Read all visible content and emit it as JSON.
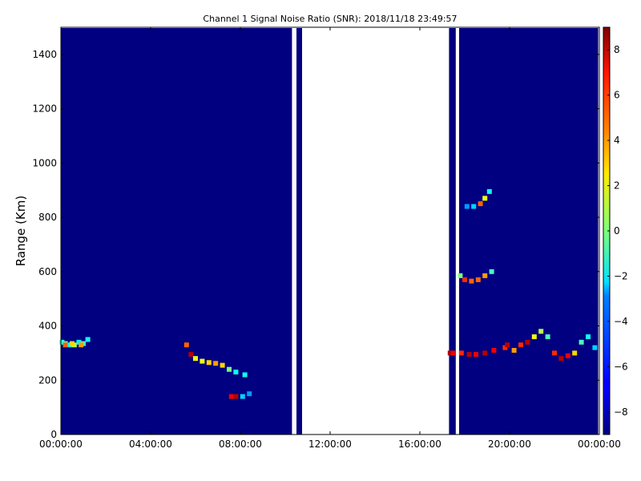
{
  "chart_data": {
    "type": "heatmap",
    "title": "Channel 1 Signal Noise Ratio (SNR): 2018/11/18 23:49:57",
    "xlabel": "",
    "ylabel": "Range (Km)",
    "x_tick_labels": [
      "00:00:00",
      "04:00:00",
      "08:00:00",
      "12:00:00",
      "16:00:00",
      "20:00:00",
      "00:00:00"
    ],
    "x_range_hours": [
      0,
      24
    ],
    "y_ticks": [
      0,
      200,
      400,
      600,
      800,
      1000,
      1200,
      1400
    ],
    "y_range": [
      0,
      1500
    ],
    "colorbar": {
      "ticks": [
        8,
        6,
        4,
        2,
        0,
        -2,
        -4,
        -6,
        -8
      ],
      "range": [
        -9,
        9
      ],
      "colormap": "jet"
    },
    "background_value": -9,
    "data_segments_hours": [
      [
        0,
        10.3
      ],
      [
        10.5,
        10.75
      ],
      [
        17.3,
        17.6
      ],
      [
        17.75,
        23.95
      ]
    ],
    "features": [
      {
        "name": "echo-0000",
        "points": [
          [
            0.05,
            340,
            -1.5
          ],
          [
            0.2,
            335,
            -1
          ],
          [
            0.4,
            330,
            -2
          ],
          [
            0.6,
            330,
            1
          ],
          [
            0.8,
            340,
            -2.5
          ],
          [
            1.0,
            335,
            -1
          ],
          [
            1.2,
            350,
            -2
          ]
        ]
      },
      {
        "name": "echo-0000-core",
        "points": [
          [
            0.2,
            330,
            5
          ],
          [
            0.5,
            335,
            3
          ],
          [
            0.9,
            330,
            4
          ]
        ]
      },
      {
        "name": "echo-0600",
        "points": [
          [
            5.6,
            330,
            5
          ],
          [
            5.8,
            295,
            8
          ],
          [
            6.0,
            280,
            2
          ],
          [
            6.3,
            270,
            2
          ],
          [
            6.6,
            265,
            3
          ],
          [
            6.9,
            262,
            4
          ],
          [
            7.2,
            255,
            3
          ],
          [
            7.5,
            240,
            0
          ],
          [
            7.8,
            230,
            -2
          ],
          [
            8.2,
            220,
            -2
          ]
        ]
      },
      {
        "name": "echo-0800",
        "points": [
          [
            7.6,
            140,
            7
          ],
          [
            7.8,
            140,
            8
          ],
          [
            8.1,
            140,
            -3
          ],
          [
            8.4,
            150,
            -4
          ]
        ]
      },
      {
        "name": "echo-1730",
        "points": [
          [
            17.35,
            300,
            8
          ],
          [
            17.5,
            300,
            7
          ],
          [
            17.85,
            300,
            6
          ],
          [
            18.2,
            295,
            8
          ],
          [
            18.5,
            295,
            7
          ],
          [
            18.9,
            300,
            8
          ],
          [
            19.3,
            310,
            7
          ],
          [
            19.8,
            320,
            6
          ]
        ]
      },
      {
        "name": "echo-arc-600",
        "points": [
          [
            17.8,
            585,
            0
          ],
          [
            18.0,
            570,
            6
          ],
          [
            18.3,
            565,
            5
          ],
          [
            18.6,
            570,
            5
          ],
          [
            18.9,
            585,
            4
          ],
          [
            19.2,
            600,
            -1
          ]
        ]
      },
      {
        "name": "echo-arc-850",
        "points": [
          [
            18.1,
            840,
            -4
          ],
          [
            18.4,
            840,
            -3
          ],
          [
            18.7,
            850,
            5
          ],
          [
            18.9,
            870,
            2
          ],
          [
            19.1,
            895,
            -2
          ]
        ]
      },
      {
        "name": "echo-evening-layer",
        "points": [
          [
            19.9,
            330,
            8
          ],
          [
            20.2,
            310,
            4
          ],
          [
            20.5,
            330,
            6
          ],
          [
            20.8,
            340,
            8
          ],
          [
            21.1,
            360,
            2
          ],
          [
            21.4,
            380,
            1
          ],
          [
            21.7,
            360,
            -1
          ],
          [
            22.0,
            300,
            6
          ],
          [
            22.3,
            280,
            8
          ],
          [
            22.6,
            290,
            7
          ],
          [
            22.9,
            300,
            3
          ],
          [
            23.2,
            340,
            -1
          ],
          [
            23.5,
            360,
            -2
          ],
          [
            23.8,
            320,
            -3
          ]
        ]
      }
    ]
  }
}
